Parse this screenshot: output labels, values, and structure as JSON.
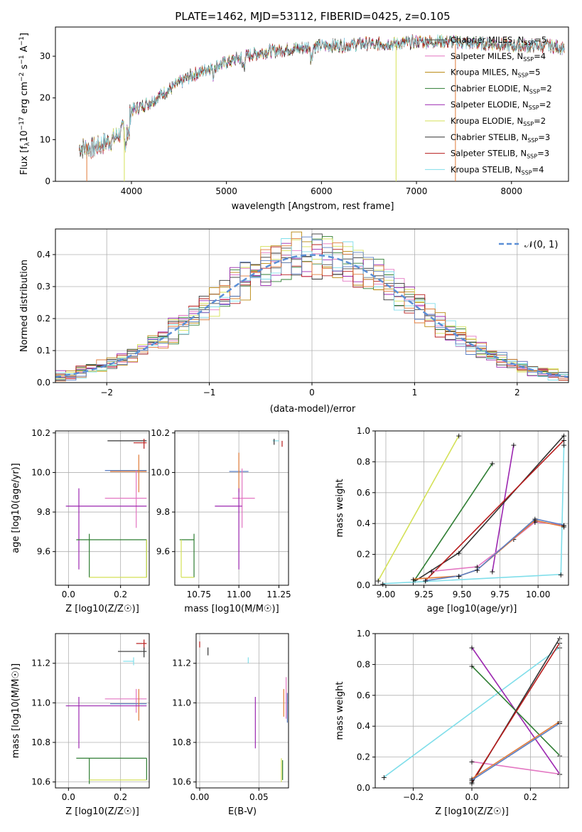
{
  "title": "PLATE=1462, MJD=53112, FIBERID=0425, z=0.105",
  "spectrum": {
    "xlabel": "wavelength [Angstrom, rest frame]",
    "ylabel": "Flux [f_λ10^-17 erg cm^-2 s^-1 A^-1]",
    "xticks": [
      4000,
      5000,
      6000,
      7000,
      8000
    ],
    "yticks": [
      0,
      10,
      20,
      30
    ],
    "legend": [
      {
        "label": "Chabrier MILES, N_SSP=5",
        "color": "#4a4a4a"
      },
      {
        "label": "Salpeter MILES, N_SSP=4",
        "color": "#e377c2"
      },
      {
        "label": "Kroupa MILES, N_SSP=5",
        "color": "#b8860b"
      },
      {
        "label": "Chabrier ELODIE, N_SSP=2",
        "color": "#2e7d32"
      },
      {
        "label": "Salpeter ELODIE, N_SSP=2",
        "color": "#9c27b0"
      },
      {
        "label": "Kroupa ELODIE, N_SSP=2",
        "color": "#d4e157"
      },
      {
        "label": "Chabrier STELIB, N_SSP=3",
        "color": "#333333"
      },
      {
        "label": "Salpeter STELIB, N_SSP=3",
        "color": "#b71c1c"
      },
      {
        "label": "Kroupa STELIB, N_SSP=4",
        "color": "#80deea"
      }
    ]
  },
  "residuals": {
    "xlabel": "(data-model)/error",
    "ylabel": "Normed distribution",
    "xticks": [
      -2,
      -1,
      0,
      1,
      2
    ],
    "yticks": [
      0.0,
      0.1,
      0.2,
      0.3,
      0.4
    ],
    "legend_label": "𝒩(0, 1)"
  },
  "panels": {
    "age_vs_Z": {
      "xlabel": "Z [log10(Z/Z☉)]",
      "ylabel": "age  [log10(age/yr)]",
      "xticks": [
        "0.0",
        "0.2"
      ],
      "yticks": [
        "9.6",
        "9.8",
        "10.0",
        "10.2"
      ]
    },
    "age_vs_mass": {
      "xlabel": "mass [log10(M/M☉)]",
      "xticks": [
        "10.75",
        "11.00",
        "11.25"
      ],
      "yticks": [
        "9.6",
        "9.8",
        "10.0",
        "10.2"
      ]
    },
    "weight_vs_age": {
      "xlabel": "age  [log10(age/yr)]",
      "ylabel": "mass weight",
      "xticks": [
        "9.00",
        "9.25",
        "9.50",
        "9.75",
        "10.00"
      ],
      "yticks": [
        "0.0",
        "0.2",
        "0.4",
        "0.6",
        "0.8",
        "1.0"
      ]
    },
    "mass_vs_Z": {
      "xlabel": "Z [log10(Z/Z☉)]",
      "ylabel": "mass [log10(M/M☉)]",
      "xticks": [
        "0.0",
        "0.2"
      ],
      "yticks": [
        "10.6",
        "10.8",
        "11.0",
        "11.2"
      ]
    },
    "mass_vs_ebv": {
      "xlabel": "E(B-V)",
      "xticks": [
        "0.00",
        "0.05"
      ],
      "yticks": [
        "10.6",
        "10.8",
        "11.0",
        "11.2"
      ]
    },
    "weight_vs_Z": {
      "xlabel": "Z [log10(Z/Z☉)]",
      "ylabel": "mass weight",
      "xticks": [
        "−0.2",
        "0.0",
        "0.2"
      ],
      "yticks": [
        "0.0",
        "0.2",
        "0.4",
        "0.6",
        "0.8",
        "1.0"
      ]
    }
  },
  "chart_data": [
    {
      "type": "line",
      "title": "PLATE=1462, MJD=53112, FIBERID=0425, z=0.105",
      "xlabel": "wavelength [Angstrom, rest frame]",
      "ylabel": "Flux [f_λ10^-17 erg cm^-2 s^-1 A^-1]",
      "xlim": [
        3200,
        8600
      ],
      "ylim": [
        0,
        37
      ],
      "grid": false,
      "legend_position": "top-right",
      "continuum": [
        [
          3450,
          8
        ],
        [
          3600,
          8
        ],
        [
          3700,
          9
        ],
        [
          3800,
          10
        ],
        [
          3900,
          12
        ],
        [
          3950,
          14
        ],
        [
          4000,
          17
        ],
        [
          4200,
          19
        ],
        [
          4400,
          22
        ],
        [
          4600,
          25
        ],
        [
          4800,
          27
        ],
        [
          5000,
          28.5
        ],
        [
          5200,
          30
        ],
        [
          5400,
          31
        ],
        [
          5600,
          31.5
        ],
        [
          5800,
          32
        ],
        [
          6000,
          32.5
        ],
        [
          6200,
          32.5
        ],
        [
          6400,
          33
        ],
        [
          6600,
          33
        ],
        [
          6800,
          33
        ],
        [
          7000,
          33.5
        ],
        [
          7200,
          33.5
        ],
        [
          7400,
          33.5
        ],
        [
          7600,
          33
        ],
        [
          7800,
          33
        ],
        [
          8000,
          32.5
        ],
        [
          8200,
          32.5
        ],
        [
          8400,
          32.5
        ],
        [
          8560,
          32
        ]
      ],
      "series": [
        {
          "name": "Chabrier MILES, N_SSP=5"
        },
        {
          "name": "Salpeter MILES, N_SSP=4"
        },
        {
          "name": "Kroupa MILES, N_SSP=5"
        },
        {
          "name": "Chabrier ELODIE, N_SSP=2"
        },
        {
          "name": "Salpeter ELODIE, N_SSP=2"
        },
        {
          "name": "Kroupa ELODIE, N_SSP=2"
        },
        {
          "name": "Chabrier STELIB, N_SSP=3"
        },
        {
          "name": "Salpeter STELIB, N_SSP=3"
        },
        {
          "name": "Kroupa STELIB, N_SSP=4"
        }
      ]
    },
    {
      "type": "line",
      "xlabel": "(data-model)/error",
      "ylabel": "Normed distribution",
      "xlim": [
        -2.5,
        2.5
      ],
      "ylim": [
        0,
        0.48
      ],
      "grid": true,
      "legend_position": "top-right",
      "series": [
        {
          "name": "𝒩(0, 1)",
          "mean": 0,
          "sigma": 1
        }
      ],
      "histogram_bin_width": 0.1
    },
    {
      "type": "scatter",
      "xlabel": "Z [log10(Z/Z☉)]",
      "ylabel": "age  [log10(age/yr)]",
      "xlim": [
        -0.05,
        0.31
      ],
      "ylim": [
        9.43,
        10.21
      ],
      "grid": true
    },
    {
      "type": "scatter",
      "xlabel": "mass [log10(M/M☉)]",
      "xlim": [
        10.6,
        11.31
      ],
      "ylim": [
        9.43,
        10.21
      ],
      "grid": true
    },
    {
      "type": "line",
      "xlabel": "age  [log10(age/yr)]",
      "ylabel": "mass weight",
      "xlim": [
        8.93,
        10.2
      ],
      "ylim": [
        0,
        1
      ],
      "grid": true,
      "series": [
        {
          "color": "#d4e157",
          "x": [
            8.95,
            9.48
          ],
          "y": [
            0.03,
            0.97
          ]
        },
        {
          "color": "#2e7d32",
          "x": [
            9.18,
            9.7
          ],
          "y": [
            0.02,
            0.79
          ]
        },
        {
          "color": "#9c27b0",
          "x": [
            9.7,
            9.84
          ],
          "y": [
            0.09,
            0.91
          ]
        },
        {
          "color": "#333333",
          "x": [
            9.18,
            9.48,
            10.17
          ],
          "y": [
            0.02,
            0.21,
            0.97
          ]
        },
        {
          "color": "#b71c1c",
          "x": [
            9.26,
            10.17
          ],
          "y": [
            0.03,
            0.94
          ]
        },
        {
          "color": "#80deea",
          "x": [
            8.98,
            10.15,
            10.17
          ],
          "y": [
            0.01,
            0.07,
            0.91
          ]
        },
        {
          "color": "#e377c2",
          "x": [
            9.3,
            9.6,
            9.84,
            9.98,
            10.17
          ],
          "y": [
            0.09,
            0.12,
            0.3,
            0.41,
            0.39
          ]
        },
        {
          "color": "#e07b39",
          "x": [
            9.18,
            9.48,
            9.6,
            9.98,
            10.17
          ],
          "y": [
            0.04,
            0.06,
            0.1,
            0.42,
            0.38
          ]
        },
        {
          "color": "#5b7fc4",
          "x": [
            9.26,
            9.48,
            9.6,
            9.98,
            10.17
          ],
          "y": [
            0.03,
            0.06,
            0.1,
            0.43,
            0.39
          ]
        }
      ]
    },
    {
      "type": "scatter",
      "xlabel": "Z [log10(Z/Z☉)]",
      "ylabel": "mass [log10(M/M☉)]",
      "xlim": [
        -0.05,
        0.31
      ],
      "ylim": [
        10.57,
        11.35
      ],
      "grid": true
    },
    {
      "type": "scatter",
      "xlabel": "E(B-V)",
      "xlim": [
        -0.003,
        0.075
      ],
      "ylim": [
        10.57,
        11.35
      ],
      "grid": true
    },
    {
      "type": "line",
      "xlabel": "Z [log10(Z/Z☉)]",
      "ylabel": "mass weight",
      "xlim": [
        -0.33,
        0.33
      ],
      "ylim": [
        0,
        1
      ],
      "grid": true,
      "series": [
        {
          "color": "#80deea",
          "x": [
            -0.3,
            0.3
          ],
          "y": [
            0.07,
            0.91
          ]
        },
        {
          "color": "#9c27b0",
          "x": [
            0.0,
            0.3
          ],
          "y": [
            0.91,
            0.09
          ]
        },
        {
          "color": "#2e7d32",
          "x": [
            0.0,
            0.3
          ],
          "y": [
            0.79,
            0.21
          ]
        },
        {
          "color": "#e377c2",
          "x": [
            0.0,
            0.3
          ],
          "y": [
            0.17,
            0.09
          ]
        },
        {
          "color": "#333333",
          "x": [
            0.0,
            0.3
          ],
          "y": [
            0.03,
            0.97
          ]
        },
        {
          "color": "#b71c1c",
          "x": [
            0.0,
            0.3
          ],
          "y": [
            0.04,
            0.94
          ]
        },
        {
          "color": "#e07b39",
          "x": [
            0.0,
            0.3
          ],
          "y": [
            0.06,
            0.43
          ]
        },
        {
          "color": "#5b7fc4",
          "x": [
            0.0,
            0.3
          ],
          "y": [
            0.05,
            0.42
          ]
        }
      ]
    }
  ]
}
